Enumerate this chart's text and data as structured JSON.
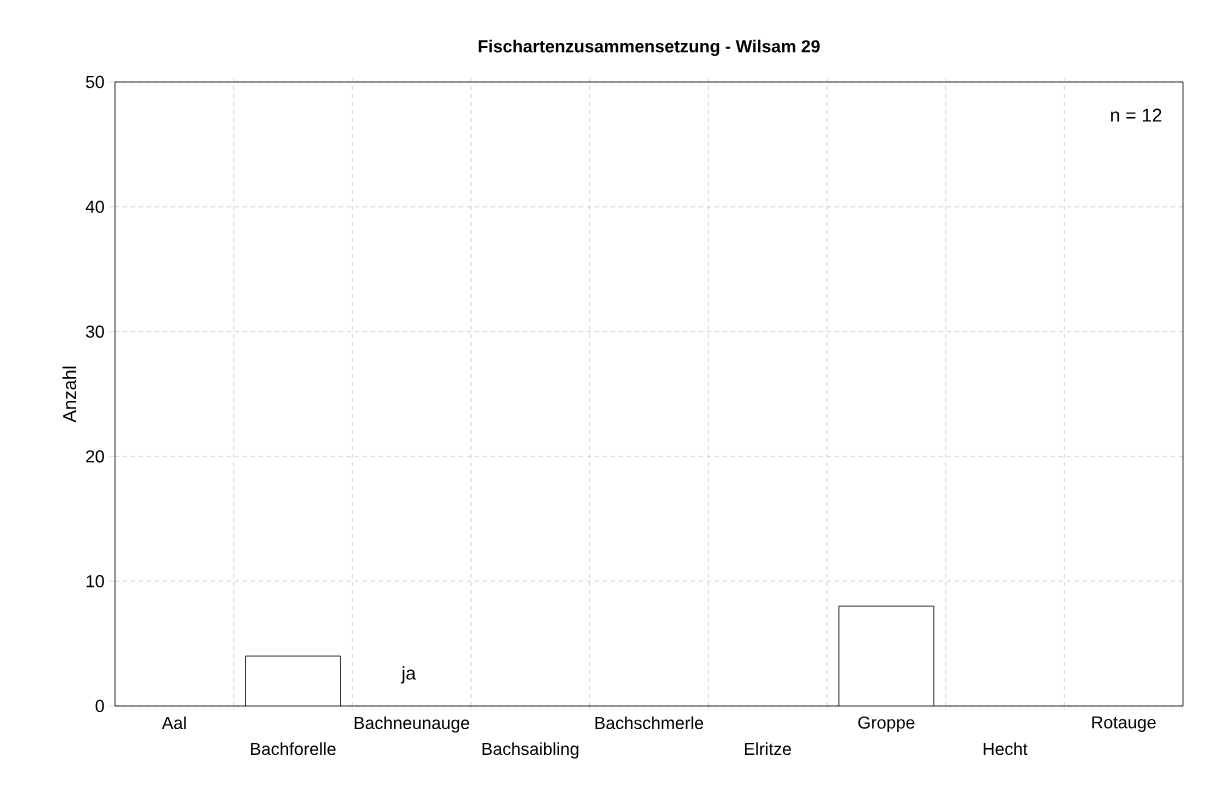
{
  "chart_data": {
    "type": "bar",
    "title": "Fischartenzusammensetzung - Wilsam 29",
    "ylabel": "Anzahl",
    "categories": [
      "Aal",
      "Bachforelle",
      "Bachneunauge",
      "Bachsaibling",
      "Bachschmerle",
      "Elritze",
      "Groppe",
      "Hecht",
      "Rotauge"
    ],
    "values": [
      null,
      4,
      null,
      null,
      null,
      null,
      8,
      null,
      null
    ],
    "color": "#ffffff",
    "ylim": [
      0,
      50
    ],
    "yticks": [
      0,
      10,
      20,
      30,
      40,
      50
    ],
    "grid": true,
    "annotations": [
      "n = 12",
      "ja"
    ]
  }
}
